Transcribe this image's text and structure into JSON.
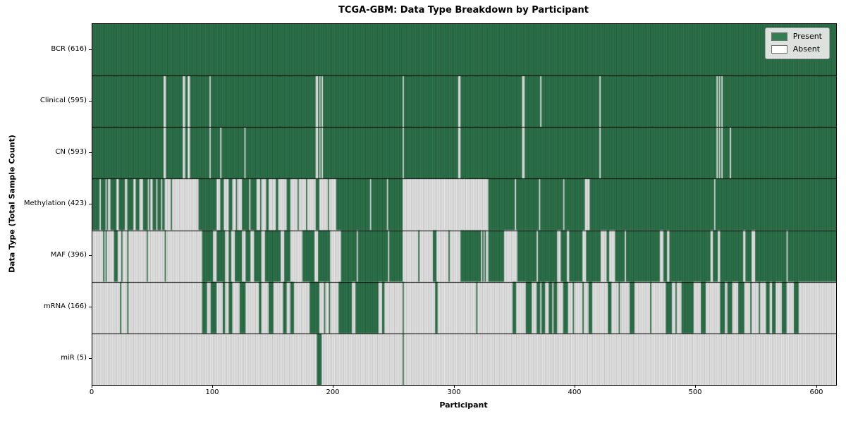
{
  "colors": {
    "present": "#327d52",
    "present_edge": "#1c4c30",
    "absent": "#ffffff",
    "absent_edge": "#8f8f8f",
    "row_divider": "#000000"
  },
  "chart_data": {
    "type": "heatmap",
    "title": "TCGA-GBM: Data Type Breakdown by Participant",
    "xlabel": "Participant",
    "ylabel": "Data Type (Total Sample Count)",
    "x_range": [
      0,
      616
    ],
    "x_ticks": [
      0,
      100,
      200,
      300,
      400,
      500,
      600
    ],
    "grid": false,
    "legend_position": "upper right",
    "legend": [
      {
        "label": "Present",
        "color": "#327d52"
      },
      {
        "label": "Absent",
        "color": "#ffffff"
      }
    ],
    "runs_encoding": "each row: sequential [length, state] pairs over participants 0-615; P=present, A=absent; patterns estimated from pixels",
    "rows": [
      {
        "label": "BCR (616)",
        "present_count": 616,
        "runs": [
          [
            616,
            "P"
          ]
        ]
      },
      {
        "label": "Clinical (595)",
        "present_count": 595,
        "runs": [
          [
            59,
            "P"
          ],
          [
            2,
            "A"
          ],
          [
            14,
            "P"
          ],
          [
            2,
            "A"
          ],
          [
            2,
            "P"
          ],
          [
            2,
            "A"
          ],
          [
            16,
            "P"
          ],
          [
            1,
            "A"
          ],
          [
            87,
            "P"
          ],
          [
            2,
            "A"
          ],
          [
            1,
            "P"
          ],
          [
            1,
            "A"
          ],
          [
            1,
            "P"
          ],
          [
            1,
            "A"
          ],
          [
            66,
            "P"
          ],
          [
            1,
            "A"
          ],
          [
            45,
            "P"
          ],
          [
            2,
            "A"
          ],
          [
            51,
            "P"
          ],
          [
            2,
            "A"
          ],
          [
            13,
            "P"
          ],
          [
            1,
            "A"
          ],
          [
            48,
            "P"
          ],
          [
            1,
            "A"
          ],
          [
            96,
            "P"
          ],
          [
            1,
            "A"
          ],
          [
            1,
            "P"
          ],
          [
            1,
            "A"
          ],
          [
            1,
            "P"
          ],
          [
            1,
            "A"
          ],
          [
            94,
            "P"
          ]
        ]
      },
      {
        "label": "CN (593)",
        "present_count": 593,
        "runs": [
          [
            59,
            "P"
          ],
          [
            2,
            "A"
          ],
          [
            14,
            "P"
          ],
          [
            2,
            "A"
          ],
          [
            2,
            "P"
          ],
          [
            2,
            "A"
          ],
          [
            16,
            "P"
          ],
          [
            1,
            "A"
          ],
          [
            8,
            "P"
          ],
          [
            1,
            "A"
          ],
          [
            19,
            "P"
          ],
          [
            1,
            "A"
          ],
          [
            58,
            "P"
          ],
          [
            2,
            "A"
          ],
          [
            1,
            "P"
          ],
          [
            1,
            "A"
          ],
          [
            1,
            "P"
          ],
          [
            1,
            "A"
          ],
          [
            66,
            "P"
          ],
          [
            1,
            "A"
          ],
          [
            45,
            "P"
          ],
          [
            2,
            "A"
          ],
          [
            51,
            "P"
          ],
          [
            2,
            "A"
          ],
          [
            62,
            "P"
          ],
          [
            1,
            "A"
          ],
          [
            96,
            "P"
          ],
          [
            1,
            "A"
          ],
          [
            1,
            "P"
          ],
          [
            1,
            "A"
          ],
          [
            1,
            "P"
          ],
          [
            1,
            "A"
          ],
          [
            6,
            "P"
          ],
          [
            1,
            "A"
          ],
          [
            87,
            "P"
          ]
        ]
      },
      {
        "label": "Methylation (423)",
        "present_count": 423,
        "runs": [
          [
            6,
            "P"
          ],
          [
            1,
            "A"
          ],
          [
            4,
            "P"
          ],
          [
            1,
            "A"
          ],
          [
            1,
            "P"
          ],
          [
            2,
            "A"
          ],
          [
            5,
            "P"
          ],
          [
            2,
            "A"
          ],
          [
            5,
            "P"
          ],
          [
            2,
            "A"
          ],
          [
            5,
            "P"
          ],
          [
            2,
            "A"
          ],
          [
            3,
            "P"
          ],
          [
            3,
            "A"
          ],
          [
            4,
            "P"
          ],
          [
            1,
            "A"
          ],
          [
            1,
            "P"
          ],
          [
            2,
            "A"
          ],
          [
            3,
            "P"
          ],
          [
            1,
            "A"
          ],
          [
            3,
            "P"
          ],
          [
            1,
            "A"
          ],
          [
            2,
            "P"
          ],
          [
            5,
            "A"
          ],
          [
            1,
            "P"
          ],
          [
            22,
            "A"
          ],
          [
            15,
            "P"
          ],
          [
            3,
            "A"
          ],
          [
            3,
            "P"
          ],
          [
            4,
            "A"
          ],
          [
            3,
            "P"
          ],
          [
            3,
            "A"
          ],
          [
            1,
            "P"
          ],
          [
            4,
            "A"
          ],
          [
            6,
            "P"
          ],
          [
            1,
            "A"
          ],
          [
            5,
            "P"
          ],
          [
            3,
            "A"
          ],
          [
            1,
            "P"
          ],
          [
            4,
            "A"
          ],
          [
            2,
            "P"
          ],
          [
            6,
            "A"
          ],
          [
            2,
            "P"
          ],
          [
            7,
            "A"
          ],
          [
            3,
            "P"
          ],
          [
            6,
            "A"
          ],
          [
            1,
            "P"
          ],
          [
            6,
            "A"
          ],
          [
            1,
            "P"
          ],
          [
            7,
            "A"
          ],
          [
            3,
            "P"
          ],
          [
            7,
            "A"
          ],
          [
            1,
            "P"
          ],
          [
            6,
            "A"
          ],
          [
            28,
            "P"
          ],
          [
            1,
            "A"
          ],
          [
            13,
            "P"
          ],
          [
            1,
            "A"
          ],
          [
            12,
            "P"
          ],
          [
            71,
            "A"
          ],
          [
            22,
            "P"
          ],
          [
            1,
            "A"
          ],
          [
            19,
            "P"
          ],
          [
            1,
            "A"
          ],
          [
            19,
            "P"
          ],
          [
            1,
            "A"
          ],
          [
            17,
            "P"
          ],
          [
            4,
            "A"
          ],
          [
            103,
            "P"
          ],
          [
            1,
            "A"
          ],
          [
            100,
            "P"
          ]
        ]
      },
      {
        "label": "MAF (396)",
        "present_count": 396,
        "runs": [
          [
            9,
            "A"
          ],
          [
            1,
            "P"
          ],
          [
            1,
            "A"
          ],
          [
            1,
            "P"
          ],
          [
            6,
            "A"
          ],
          [
            3,
            "P"
          ],
          [
            3,
            "A"
          ],
          [
            1,
            "P"
          ],
          [
            4,
            "A"
          ],
          [
            1,
            "P"
          ],
          [
            15,
            "A"
          ],
          [
            1,
            "P"
          ],
          [
            14,
            "A"
          ],
          [
            1,
            "P"
          ],
          [
            30,
            "A"
          ],
          [
            9,
            "P"
          ],
          [
            3,
            "A"
          ],
          [
            7,
            "P"
          ],
          [
            3,
            "A"
          ],
          [
            2,
            "P"
          ],
          [
            3,
            "A"
          ],
          [
            6,
            "P"
          ],
          [
            3,
            "A"
          ],
          [
            4,
            "P"
          ],
          [
            3,
            "A"
          ],
          [
            6,
            "P"
          ],
          [
            3,
            "A"
          ],
          [
            13,
            "P"
          ],
          [
            3,
            "A"
          ],
          [
            5,
            "P"
          ],
          [
            10,
            "A"
          ],
          [
            10,
            "P"
          ],
          [
            3,
            "A"
          ],
          [
            10,
            "P"
          ],
          [
            9,
            "A"
          ],
          [
            13,
            "P"
          ],
          [
            1,
            "A"
          ],
          [
            25,
            "P"
          ],
          [
            1,
            "A"
          ],
          [
            11,
            "P"
          ],
          [
            13,
            "A"
          ],
          [
            1,
            "P"
          ],
          [
            11,
            "A"
          ],
          [
            3,
            "P"
          ],
          [
            10,
            "A"
          ],
          [
            1,
            "P"
          ],
          [
            9,
            "A"
          ],
          [
            17,
            "P"
          ],
          [
            1,
            "A"
          ],
          [
            1,
            "P"
          ],
          [
            1,
            "A"
          ],
          [
            1,
            "P"
          ],
          [
            2,
            "A"
          ],
          [
            13,
            "P"
          ],
          [
            11,
            "A"
          ],
          [
            16,
            "P"
          ],
          [
            1,
            "A"
          ],
          [
            16,
            "P"
          ],
          [
            3,
            "A"
          ],
          [
            5,
            "P"
          ],
          [
            2,
            "A"
          ],
          [
            11,
            "P"
          ],
          [
            3,
            "A"
          ],
          [
            12,
            "P"
          ],
          [
            5,
            "A"
          ],
          [
            2,
            "P"
          ],
          [
            5,
            "A"
          ],
          [
            8,
            "P"
          ],
          [
            1,
            "A"
          ],
          [
            28,
            "P"
          ],
          [
            3,
            "A"
          ],
          [
            3,
            "P"
          ],
          [
            2,
            "A"
          ],
          [
            34,
            "P"
          ],
          [
            2,
            "A"
          ],
          [
            4,
            "P"
          ],
          [
            2,
            "A"
          ],
          [
            19,
            "P"
          ],
          [
            2,
            "A"
          ],
          [
            5,
            "P"
          ],
          [
            3,
            "A"
          ],
          [
            26,
            "P"
          ],
          [
            1,
            "A"
          ],
          [
            40,
            "P"
          ]
        ]
      },
      {
        "label": "mRNA (166)",
        "present_count": 166,
        "runs": [
          [
            23,
            "A"
          ],
          [
            1,
            "P"
          ],
          [
            5,
            "A"
          ],
          [
            1,
            "P"
          ],
          [
            61,
            "A"
          ],
          [
            4,
            "P"
          ],
          [
            3,
            "A"
          ],
          [
            5,
            "P"
          ],
          [
            5,
            "A"
          ],
          [
            2,
            "P"
          ],
          [
            3,
            "A"
          ],
          [
            3,
            "P"
          ],
          [
            6,
            "A"
          ],
          [
            5,
            "P"
          ],
          [
            11,
            "A"
          ],
          [
            2,
            "P"
          ],
          [
            6,
            "A"
          ],
          [
            4,
            "P"
          ],
          [
            8,
            "A"
          ],
          [
            3,
            "P"
          ],
          [
            3,
            "A"
          ],
          [
            3,
            "P"
          ],
          [
            13,
            "A"
          ],
          [
            8,
            "P"
          ],
          [
            4,
            "A"
          ],
          [
            1,
            "P"
          ],
          [
            3,
            "A"
          ],
          [
            1,
            "P"
          ],
          [
            7,
            "A"
          ],
          [
            11,
            "P"
          ],
          [
            3,
            "A"
          ],
          [
            19,
            "P"
          ],
          [
            3,
            "A"
          ],
          [
            2,
            "P"
          ],
          [
            15,
            "A"
          ],
          [
            1,
            "P"
          ],
          [
            26,
            "A"
          ],
          [
            2,
            "P"
          ],
          [
            32,
            "A"
          ],
          [
            1,
            "P"
          ],
          [
            29,
            "A"
          ],
          [
            3,
            "P"
          ],
          [
            8,
            "A"
          ],
          [
            5,
            "P"
          ],
          [
            4,
            "A"
          ],
          [
            3,
            "P"
          ],
          [
            1,
            "A"
          ],
          [
            3,
            "P"
          ],
          [
            3,
            "A"
          ],
          [
            3,
            "P"
          ],
          [
            1,
            "A"
          ],
          [
            3,
            "P"
          ],
          [
            5,
            "A"
          ],
          [
            4,
            "P"
          ],
          [
            4,
            "A"
          ],
          [
            1,
            "P"
          ],
          [
            7,
            "A"
          ],
          [
            1,
            "P"
          ],
          [
            4,
            "A"
          ],
          [
            3,
            "P"
          ],
          [
            13,
            "A"
          ],
          [
            3,
            "P"
          ],
          [
            6,
            "A"
          ],
          [
            1,
            "P"
          ],
          [
            8,
            "A"
          ],
          [
            4,
            "P"
          ],
          [
            13,
            "A"
          ],
          [
            1,
            "P"
          ],
          [
            12,
            "A"
          ],
          [
            5,
            "P"
          ],
          [
            3,
            "A"
          ],
          [
            1,
            "P"
          ],
          [
            4,
            "A"
          ],
          [
            10,
            "P"
          ],
          [
            6,
            "A"
          ],
          [
            4,
            "P"
          ],
          [
            12,
            "A"
          ],
          [
            4,
            "P"
          ],
          [
            2,
            "A"
          ],
          [
            4,
            "P"
          ],
          [
            5,
            "A"
          ],
          [
            5,
            "P"
          ],
          [
            5,
            "A"
          ],
          [
            1,
            "P"
          ],
          [
            6,
            "A"
          ],
          [
            1,
            "P"
          ],
          [
            5,
            "A"
          ],
          [
            3,
            "P"
          ],
          [
            2,
            "A"
          ],
          [
            3,
            "P"
          ],
          [
            5,
            "A"
          ],
          [
            4,
            "P"
          ],
          [
            6,
            "A"
          ],
          [
            4,
            "P"
          ],
          [
            31,
            "A"
          ]
        ]
      },
      {
        "label": "miR (5)",
        "present_count": 5,
        "runs": [
          [
            186,
            "A"
          ],
          [
            4,
            "P"
          ],
          [
            67,
            "A"
          ],
          [
            1,
            "P"
          ],
          [
            358,
            "A"
          ]
        ]
      }
    ]
  }
}
